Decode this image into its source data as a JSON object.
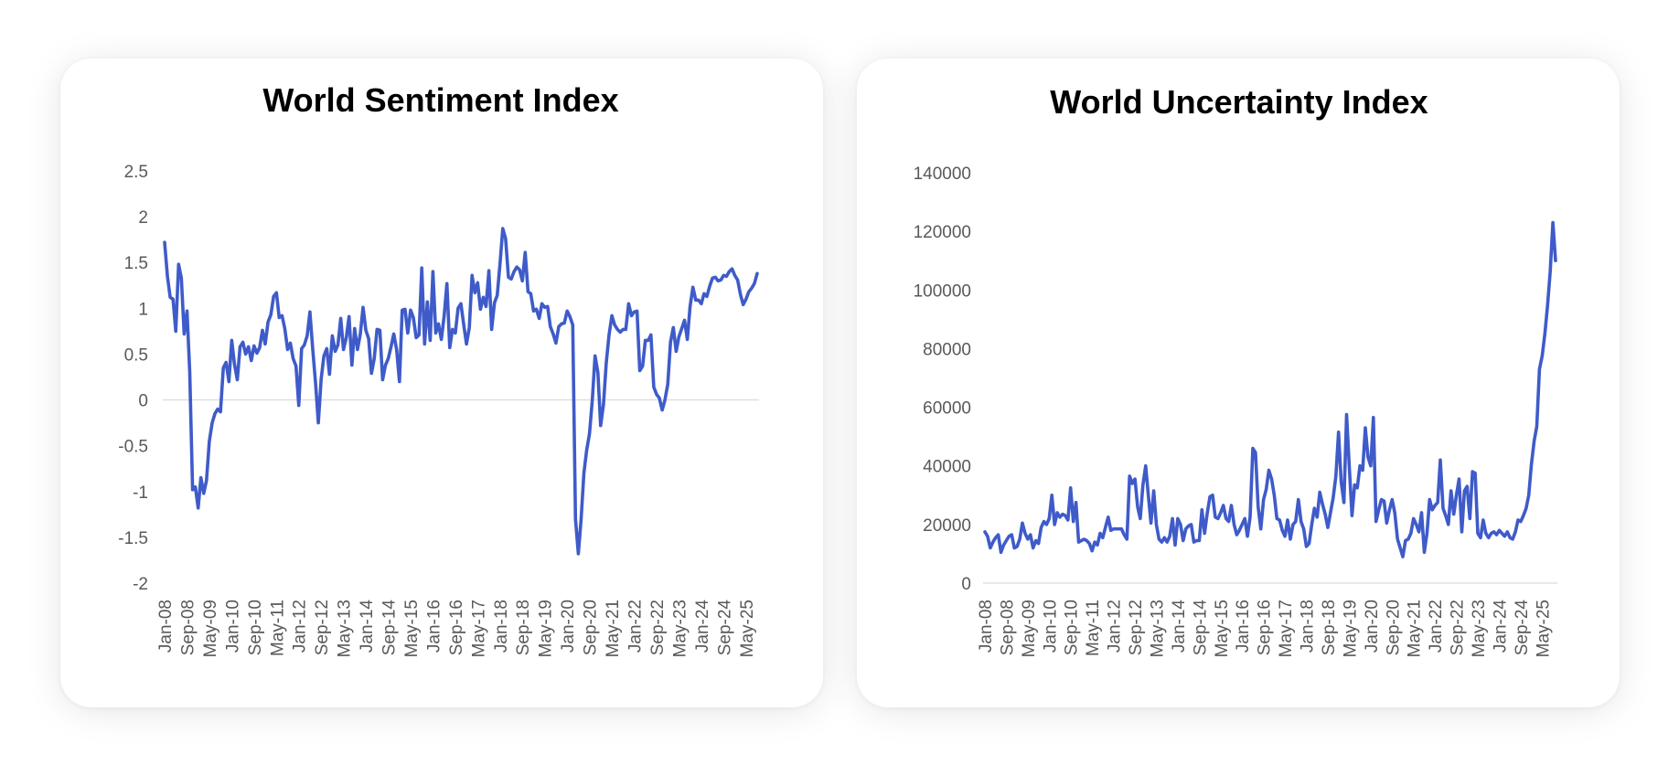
{
  "colors": {
    "line": "#3f5bc9",
    "axis": "#d9d9d9",
    "tick_text": "#595959",
    "title": "#000000"
  },
  "chart_data": [
    {
      "type": "line",
      "title": "World Sentiment Index",
      "xlabel": "",
      "ylabel": "",
      "ylim": [
        -2,
        2.5
      ],
      "yticks": [
        "2.5",
        "2",
        "1.5",
        "1",
        "0.5",
        "0",
        "-0.5",
        "-1",
        "-1.5",
        "-2"
      ],
      "xticks": [
        "Jan-08",
        "Sep-08",
        "May-09",
        "Jan-10",
        "Sep-10",
        "May-11",
        "Jan-12",
        "Sep-12",
        "May-13",
        "Jan-14",
        "Sep-14",
        "May-15",
        "Jan-16",
        "Sep-16",
        "May-17",
        "Jan-18",
        "Sep-18",
        "May-19",
        "Jan-20",
        "Sep-20",
        "May-21",
        "Jan-22",
        "Sep-22",
        "May-23",
        "Jan-24",
        "Sep-24",
        "May-25"
      ],
      "grid": false,
      "series": [
        {
          "values": [
            1.72,
            1.35,
            1.12,
            1.1,
            0.75,
            1.48,
            1.33,
            0.72,
            0.97,
            0.3,
            -0.98,
            -0.95,
            -1.18,
            -0.85,
            -1.02,
            -0.88,
            -0.45,
            -0.25,
            -0.15,
            -0.1,
            -0.13,
            0.35,
            0.41,
            0.2,
            0.65,
            0.39,
            0.22,
            0.58,
            0.63,
            0.5,
            0.58,
            0.43,
            0.59,
            0.51,
            0.57,
            0.76,
            0.61,
            0.85,
            0.93,
            1.13,
            1.17,
            0.9,
            0.92,
            0.78,
            0.55,
            0.62,
            0.45,
            0.37,
            -0.06,
            0.56,
            0.6,
            0.7,
            0.96,
            0.55,
            0.18,
            -0.25,
            0.23,
            0.48,
            0.56,
            0.28,
            0.7,
            0.53,
            0.6,
            0.89,
            0.55,
            0.68,
            0.91,
            0.38,
            0.78,
            0.55,
            0.72,
            1.01,
            0.76,
            0.67,
            0.29,
            0.45,
            0.77,
            0.76,
            0.22,
            0.38,
            0.45,
            0.58,
            0.72,
            0.55,
            0.2,
            0.98,
            0.99,
            0.73,
            0.98,
            0.9,
            0.68,
            0.71,
            1.44,
            0.61,
            1.07,
            0.65,
            1.4,
            0.73,
            0.83,
            0.66,
            0.92,
            1.27,
            0.57,
            0.77,
            0.73,
            1.0,
            1.05,
            0.82,
            0.61,
            0.79,
            1.36,
            1.17,
            1.28,
            0.99,
            1.12,
            1.02,
            1.41,
            0.77,
            1.06,
            1.14,
            1.49,
            1.87,
            1.76,
            1.34,
            1.32,
            1.4,
            1.45,
            1.42,
            1.3,
            1.61,
            1.18,
            1.16,
            0.97,
            0.99,
            0.89,
            1.05,
            1.01,
            1.02,
            0.8,
            0.72,
            0.62,
            0.8,
            0.83,
            0.84,
            0.97,
            0.91,
            0.82,
            -1.3,
            -1.68,
            -1.31,
            -0.8,
            -0.55,
            -0.37,
            0.0,
            0.48,
            0.3,
            -0.28,
            -0.05,
            0.4,
            0.71,
            0.92,
            0.82,
            0.77,
            0.74,
            0.77,
            0.77,
            1.05,
            0.92,
            0.96,
            0.97,
            0.32,
            0.37,
            0.65,
            0.65,
            0.71,
            0.14,
            0.06,
            0.02,
            -0.11,
            0.0,
            0.17,
            0.63,
            0.79,
            0.53,
            0.69,
            0.78,
            0.87,
            0.66,
            1.02,
            1.23,
            1.09,
            1.09,
            1.05,
            1.16,
            1.13,
            1.24,
            1.33,
            1.34,
            1.3,
            1.31,
            1.36,
            1.35,
            1.4,
            1.43,
            1.36,
            1.31,
            1.15,
            1.04,
            1.1,
            1.18,
            1.22,
            1.27,
            1.38
          ]
        }
      ]
    },
    {
      "type": "line",
      "title": "World Uncertainty Index",
      "xlabel": "",
      "ylabel": "",
      "ylim": [
        0,
        140000
      ],
      "yticks": [
        "140000",
        "120000",
        "100000",
        "80000",
        "60000",
        "40000",
        "20000",
        "0"
      ],
      "xticks": [
        "Jan-08",
        "Sep-08",
        "May-09",
        "Jan-10",
        "Sep-10",
        "May-11",
        "Jan-12",
        "Sep-12",
        "May-13",
        "Jan-14",
        "Sep-14",
        "May-15",
        "Jan-16",
        "Sep-16",
        "May-17",
        "Jan-18",
        "Sep-18",
        "May-19",
        "Jan-20",
        "Sep-20",
        "May-21",
        "Jan-22",
        "Sep-22",
        "May-23",
        "Jan-24",
        "Sep-24",
        "May-25"
      ],
      "grid": false,
      "series": [
        {
          "values": [
            17500,
            16000,
            12000,
            14000,
            15500,
            16500,
            10500,
            13000,
            14500,
            16000,
            16500,
            12000,
            12500,
            15000,
            20500,
            17000,
            15000,
            16500,
            12000,
            14500,
            13500,
            19000,
            21000,
            20000,
            22000,
            30000,
            20000,
            24000,
            22500,
            23500,
            23000,
            21500,
            32500,
            21000,
            27500,
            14000,
            14500,
            15000,
            14500,
            13500,
            11000,
            14000,
            13000,
            17000,
            15500,
            19000,
            22500,
            18000,
            18500,
            18500,
            18500,
            18500,
            16500,
            15000,
            36500,
            34000,
            35500,
            26000,
            22000,
            33500,
            40000,
            30000,
            20500,
            31500,
            20000,
            15000,
            14000,
            15500,
            14000,
            16000,
            22000,
            13000,
            22000,
            20000,
            14500,
            18500,
            19500,
            20000,
            14000,
            14500,
            14500,
            25000,
            17000,
            24000,
            29500,
            30000,
            22500,
            22000,
            24000,
            26500,
            22000,
            21000,
            26500,
            20000,
            16500,
            18000,
            20000,
            22000,
            16000,
            22500,
            46000,
            44500,
            26000,
            18500,
            28500,
            32000,
            38500,
            35500,
            30000,
            22000,
            21500,
            18000,
            16000,
            21500,
            15000,
            20000,
            21000,
            28500,
            21000,
            18500,
            12500,
            13500,
            20000,
            25500,
            22500,
            31000,
            27000,
            23500,
            19000,
            24000,
            29000,
            36500,
            51500,
            34500,
            27500,
            57500,
            40000,
            23000,
            33500,
            32500,
            40000,
            38500,
            53000,
            43000,
            40000,
            56500,
            21000,
            25000,
            28500,
            28000,
            20500,
            25000,
            28500,
            24000,
            15000,
            12000,
            9000,
            14500,
            15000,
            17000,
            22000,
            20000,
            17500,
            24000,
            10500,
            17000,
            28500,
            25000,
            26500,
            27500,
            42000,
            25500,
            23000,
            20000,
            31500,
            23500,
            30000,
            35500,
            17500,
            31500,
            33000,
            22000,
            38000,
            37500,
            17000,
            15500,
            21500,
            17000,
            15500,
            17000,
            17500,
            16500,
            18000,
            17000,
            16000,
            17500,
            15500,
            15000,
            17500,
            21500,
            21000,
            23000,
            25500,
            30000,
            40500,
            48500,
            53500,
            73000,
            77500,
            85000,
            94500,
            106000,
            123000,
            110000
          ]
        }
      ]
    }
  ]
}
